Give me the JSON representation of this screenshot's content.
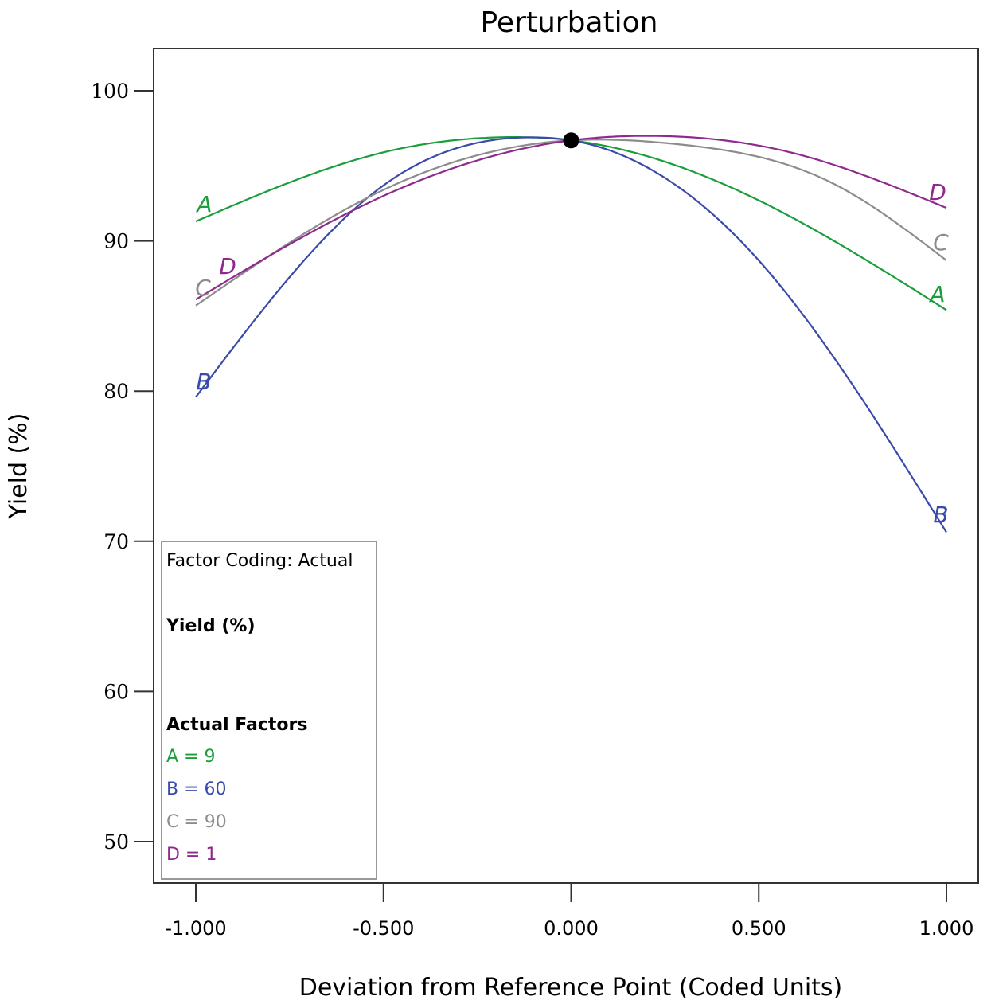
{
  "chart_data": {
    "type": "line",
    "title": "Perturbation",
    "xlabel": "Deviation from Reference Point (Coded Units)",
    "ylabel": "Yield (%)",
    "xlim": [
      -1.0,
      1.0
    ],
    "ylim": [
      47.5,
      102.6
    ],
    "x_ticks": [
      -1.0,
      -0.5,
      0.0,
      0.5,
      1.0
    ],
    "x_tick_labels": [
      "-1.000",
      "-0.500",
      "0.000",
      "0.500",
      "1.000"
    ],
    "y_ticks": [
      50,
      60,
      70,
      80,
      90,
      100
    ],
    "y_tick_labels": [
      "50",
      "60",
      "70",
      "80",
      "90",
      "100"
    ],
    "reference_point": {
      "x": 0.0,
      "y": 96.7
    },
    "series": [
      {
        "name": "A",
        "color": "#1a9e3a",
        "x": [
          -1.0,
          -0.5,
          -0.2,
          0.0,
          0.5,
          1.0
        ],
        "y": [
          91.3,
          95.9,
          96.9,
          96.7,
          92.7,
          85.4
        ]
      },
      {
        "name": "B",
        "color": "#3a4aa8",
        "x": [
          -1.0,
          -0.5,
          -0.1,
          0.0,
          0.5,
          1.0
        ],
        "y": [
          79.6,
          93.7,
          96.9,
          96.7,
          88.7,
          70.6
        ]
      },
      {
        "name": "C",
        "color": "#8c8c8c",
        "x": [
          -1.0,
          -0.5,
          0.0,
          0.3,
          0.7,
          1.0
        ],
        "y": [
          85.7,
          93.4,
          96.7,
          96.4,
          93.8,
          88.7
        ]
      },
      {
        "name": "D",
        "color": "#8e2a8e",
        "x": [
          -1.0,
          -0.5,
          0.0,
          0.2,
          0.6,
          1.0
        ],
        "y": [
          86.1,
          93.0,
          96.7,
          97.0,
          95.8,
          92.2
        ]
      }
    ],
    "legend": {
      "position": "bottom-left",
      "coding_label": "Factor Coding: Actual",
      "response_label": "Yield (%)",
      "factors_heading": "Actual Factors",
      "factors": [
        {
          "text": "A = 9",
          "color": "#1a9e3a"
        },
        {
          "text": "B = 60",
          "color": "#3a4aa8"
        },
        {
          "text": "C = 90",
          "color": "#8c8c8c"
        },
        {
          "text": "D = 1",
          "color": "#8e2a8e"
        }
      ]
    }
  }
}
